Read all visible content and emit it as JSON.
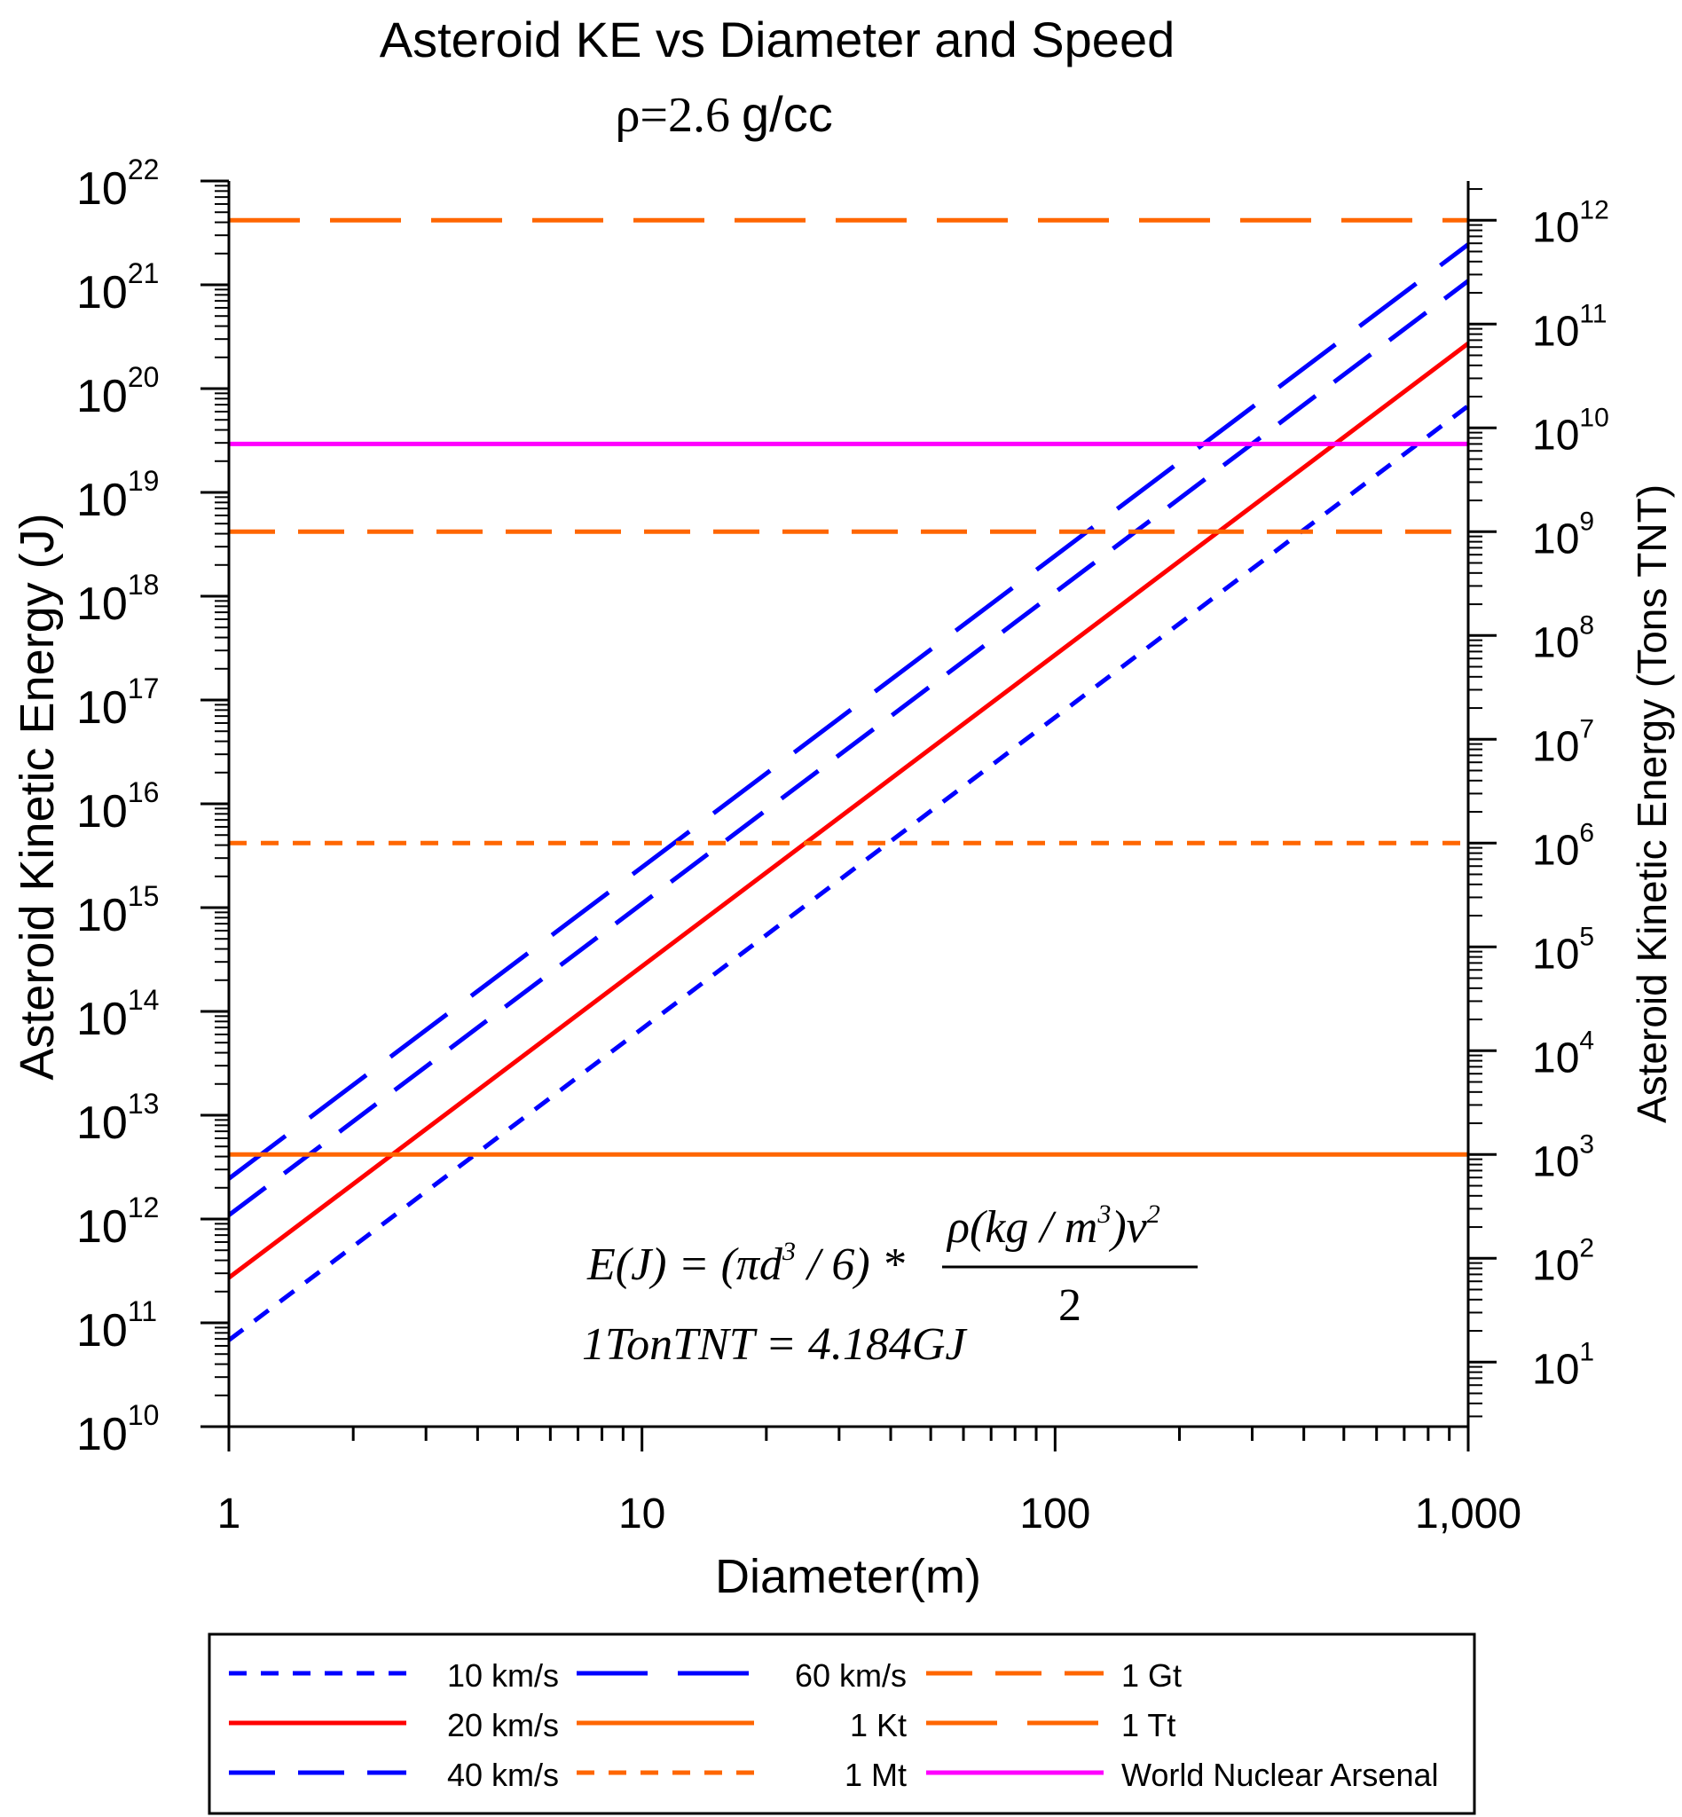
{
  "chart_data": {
    "type": "line",
    "title": "Asteroid KE vs Diameter and Speed",
    "subtitle_symbol": "ρ=2.6",
    "subtitle_unit": "g/cc",
    "xlabel": "Diameter(m)",
    "ylabel": "Asteroid Kinetic Energy (J)",
    "y2label": "Asteroid Kinetic Energy (Tons TNT)",
    "xscale": "log",
    "yscale": "log",
    "xlim": [
      1,
      1000
    ],
    "ylim": [
      10000000000.0,
      1e+22
    ],
    "y2lim": [
      2.39,
      2390000000000.0
    ],
    "x_ticks": [
      1,
      10,
      100,
      1000
    ],
    "x_tick_labels": [
      "1",
      "10",
      "100",
      "1,000"
    ],
    "y_tick_exponents": [
      "10",
      "11",
      "12",
      "13",
      "14",
      "15",
      "16",
      "17",
      "18",
      "19",
      "20",
      "21",
      "22"
    ],
    "y2_tick_exponents": [
      "1",
      "2",
      "3",
      "4",
      "5",
      "6",
      "7",
      "8",
      "9",
      "10",
      "11",
      "12"
    ],
    "tick_base": "10",
    "density_kg_m3": 2600,
    "joules_per_ton_tnt": 4184000000.0,
    "series": [
      {
        "name": "10 km/s",
        "speed_km_s": 10,
        "x": [
          1,
          1000
        ],
        "y": [
          68100000000.0,
          6.81e+19
        ],
        "color": "#0000ff",
        "dash": "short"
      },
      {
        "name": "20 km/s",
        "speed_km_s": 20,
        "x": [
          1,
          1000
        ],
        "y": [
          272000000000.0,
          2.72e+20
        ],
        "color": "#ff0000",
        "dash": "solid"
      },
      {
        "name": "40 km/s",
        "speed_km_s": 40,
        "x": [
          1,
          1000
        ],
        "y": [
          1090000000000.0,
          1.09e+21
        ],
        "color": "#0000ff",
        "dash": "medium"
      },
      {
        "name": "60 km/s",
        "speed_km_s": 60,
        "x": [
          1,
          1000
        ],
        "y": [
          2450000000000.0,
          2.45e+21
        ],
        "color": "#0000ff",
        "dash": "long"
      },
      {
        "name": "1 Kt",
        "y_tons_tnt": 1000.0,
        "y": 4184000000000.0,
        "color": "#ff6600",
        "dash": "solid"
      },
      {
        "name": "1 Mt",
        "y_tons_tnt": 1000000.0,
        "y": 4184000000000000.0,
        "color": "#ff6600",
        "dash": "short"
      },
      {
        "name": "1 Gt",
        "y_tons_tnt": 1000000000.0,
        "y": 4.184e+18,
        "color": "#ff6600",
        "dash": "medium"
      },
      {
        "name": "1 Tt",
        "y_tons_tnt": 1000000000000.0,
        "y": 4.184e+21,
        "color": "#ff6600",
        "dash": "long"
      },
      {
        "name": "World Nuclear Arsenal",
        "y_tons_tnt": 7000000000.0,
        "y": 2.93e+19,
        "color": "#ff00ff",
        "dash": "solid"
      }
    ],
    "legend": {
      "placement": "bottom",
      "columns": [
        [
          "10 km/s",
          "20 km/s",
          "40 km/s"
        ],
        [
          "60 km/s",
          "1 Kt",
          "1 Mt"
        ],
        [
          "1 Gt",
          "1 Tt",
          "World Nuclear Arsenal"
        ]
      ]
    },
    "annotation": {
      "formula_lhs": "E(J) = (πd",
      "formula_exp3": "3",
      "formula_mid": " / 6) * ",
      "formula_num": "ρ(kg / m",
      "formula_num_exp3": "3",
      "formula_num_tail": ")v",
      "formula_num_exp2": "2",
      "formula_den": "2",
      "conversion": "1TonTNT = 4.184GJ"
    },
    "grid": false
  }
}
